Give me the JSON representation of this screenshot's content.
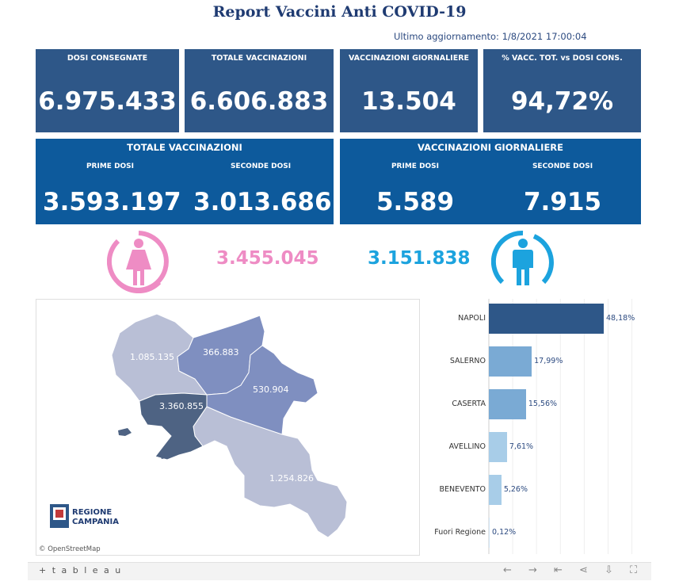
{
  "title": "Report Vaccini Anti COVID-19",
  "last_update": "Ultimo aggiornamento: 1/8/2021 17:00:04",
  "kpis": [
    {
      "label": "DOSI  CONSEGNATE",
      "value": "6.975.433"
    },
    {
      "label": "TOTALE VACCINAZIONI",
      "value": "6.606.883"
    },
    {
      "label": "VACCINAZIONI GIORNALIERE",
      "value": "13.504"
    },
    {
      "label": "% VACC. TOT. vs DOSI CONS.",
      "value": "94,72%"
    }
  ],
  "total_panel": {
    "title": "TOTALE VACCINAZIONI",
    "first_label": "PRIME DOSI",
    "first_value": "3.593.197",
    "second_label": "SECONDE DOSI",
    "second_value": "3.013.686"
  },
  "daily_panel": {
    "title": "VACCINAZIONI GIORNALIERE",
    "first_label": "PRIME DOSI",
    "first_value": "5.589",
    "second_label": "SECONDE DOSI",
    "second_value": "7.915"
  },
  "gender": {
    "female_value": "3.455.045",
    "male_value": "3.151.838",
    "female_color": "#ee8cc4",
    "male_color": "#1ca3de"
  },
  "map": {
    "labels": {
      "caserta": "1.085.135",
      "benevento": "366.883",
      "avellino": "530.904",
      "napoli": "3.360.855",
      "salerno": "1.254.826"
    },
    "logo_line1": "REGIONE",
    "logo_line2": "CAMPANIA",
    "attribution": "© OpenStreetMap"
  },
  "chart_data": {
    "type": "bar",
    "orientation": "horizontal",
    "categories": [
      "NAPOLI",
      "SALERNO",
      "CASERTA",
      "AVELLINO",
      "BENEVENTO",
      "Fuori Regione"
    ],
    "values": [
      48.18,
      17.99,
      15.56,
      7.61,
      5.26,
      0.12
    ],
    "value_labels": [
      "48,18%",
      "17,99%",
      "15,56%",
      "7,61%",
      "5,26%",
      "0,12%"
    ],
    "colors": [
      "#2e5788",
      "#7aaad4",
      "#7aaad4",
      "#a8cde8",
      "#a8cde8",
      "#cfe3f3"
    ],
    "xlim": [
      0,
      60
    ]
  },
  "toolbar": {
    "logo": "+ t a b l e a u"
  }
}
